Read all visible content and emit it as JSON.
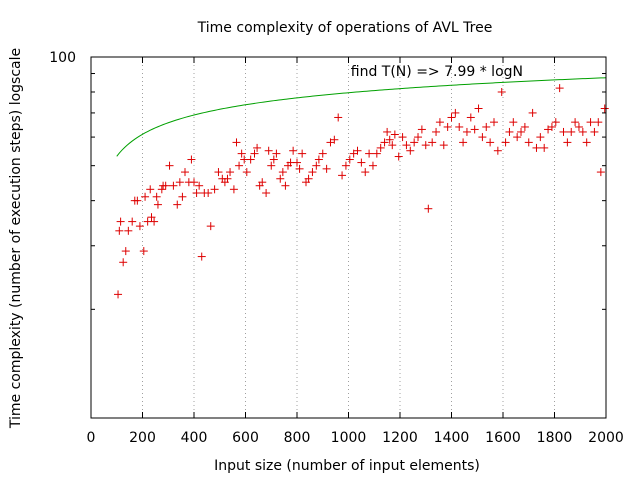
{
  "chart_data": {
    "type": "scatter",
    "title": "Time complexity of operations of AVL Tree",
    "xlabel": "Input size (number of input elements)",
    "ylabel": "Time complexity (number of execution steps) logscale",
    "xlim": [
      0,
      2000
    ],
    "ylim": [
      10,
      100
    ],
    "y_scale": "log",
    "x_ticks": [
      "0",
      "200",
      "400",
      "600",
      "800",
      "1000",
      "1200",
      "1400",
      "1600",
      "1800",
      "2000"
    ],
    "y_ticks": [
      "100"
    ],
    "x_grid": "dotted vertical",
    "annotation": "find T(N) => 7.99 * logN",
    "colors": {
      "points": "#dd0000",
      "fit": "#00a000",
      "grid": "#a0a0a0"
    },
    "fit_curve": {
      "coefficient": 7.99,
      "x_range": [
        100,
        2000
      ]
    },
    "points": [
      [
        105,
        22
      ],
      [
        110,
        33
      ],
      [
        115,
        35
      ],
      [
        125,
        27
      ],
      [
        135,
        29
      ],
      [
        145,
        33
      ],
      [
        160,
        35
      ],
      [
        170,
        40
      ],
      [
        180,
        40
      ],
      [
        190,
        34
      ],
      [
        205,
        29
      ],
      [
        210,
        41
      ],
      [
        220,
        35
      ],
      [
        230,
        43
      ],
      [
        235,
        36
      ],
      [
        245,
        35
      ],
      [
        255,
        41
      ],
      [
        260,
        39
      ],
      [
        275,
        43
      ],
      [
        280,
        44
      ],
      [
        290,
        44
      ],
      [
        305,
        50
      ],
      [
        320,
        44
      ],
      [
        335,
        39
      ],
      [
        345,
        45
      ],
      [
        355,
        41
      ],
      [
        365,
        48
      ],
      [
        380,
        45
      ],
      [
        390,
        52
      ],
      [
        400,
        45
      ],
      [
        410,
        42
      ],
      [
        420,
        44
      ],
      [
        430,
        28
      ],
      [
        440,
        42
      ],
      [
        455,
        42
      ],
      [
        465,
        34
      ],
      [
        480,
        43
      ],
      [
        495,
        48
      ],
      [
        510,
        46
      ],
      [
        520,
        45
      ],
      [
        530,
        46
      ],
      [
        540,
        48
      ],
      [
        555,
        43
      ],
      [
        565,
        58
      ],
      [
        575,
        50
      ],
      [
        585,
        54
      ],
      [
        595,
        52
      ],
      [
        605,
        48
      ],
      [
        620,
        52
      ],
      [
        635,
        54
      ],
      [
        645,
        56
      ],
      [
        655,
        44
      ],
      [
        665,
        45
      ],
      [
        680,
        42
      ],
      [
        690,
        55
      ],
      [
        700,
        50
      ],
      [
        710,
        52
      ],
      [
        720,
        54
      ],
      [
        735,
        46
      ],
      [
        745,
        48
      ],
      [
        755,
        44
      ],
      [
        765,
        50
      ],
      [
        775,
        51
      ],
      [
        785,
        55
      ],
      [
        800,
        51
      ],
      [
        810,
        49
      ],
      [
        820,
        54
      ],
      [
        835,
        45
      ],
      [
        845,
        46
      ],
      [
        860,
        48
      ],
      [
        875,
        50
      ],
      [
        885,
        52
      ],
      [
        900,
        54
      ],
      [
        915,
        49
      ],
      [
        930,
        58
      ],
      [
        945,
        59
      ],
      [
        960,
        68
      ],
      [
        975,
        47
      ],
      [
        990,
        50
      ],
      [
        1005,
        52
      ],
      [
        1020,
        54
      ],
      [
        1035,
        55
      ],
      [
        1050,
        51
      ],
      [
        1065,
        48
      ],
      [
        1080,
        54
      ],
      [
        1095,
        50
      ],
      [
        1110,
        54
      ],
      [
        1125,
        56
      ],
      [
        1140,
        58
      ],
      [
        1150,
        62
      ],
      [
        1160,
        59
      ],
      [
        1170,
        57
      ],
      [
        1180,
        61
      ],
      [
        1195,
        53
      ],
      [
        1210,
        60
      ],
      [
        1225,
        57
      ],
      [
        1240,
        55
      ],
      [
        1255,
        58
      ],
      [
        1270,
        60
      ],
      [
        1285,
        63
      ],
      [
        1300,
        57
      ],
      [
        1310,
        38
      ],
      [
        1325,
        58
      ],
      [
        1340,
        62
      ],
      [
        1355,
        66
      ],
      [
        1370,
        57
      ],
      [
        1385,
        64
      ],
      [
        1400,
        68
      ],
      [
        1415,
        70
      ],
      [
        1430,
        64
      ],
      [
        1445,
        58
      ],
      [
        1460,
        62
      ],
      [
        1475,
        68
      ],
      [
        1490,
        63
      ],
      [
        1505,
        72
      ],
      [
        1520,
        60
      ],
      [
        1535,
        64
      ],
      [
        1550,
        58
      ],
      [
        1565,
        66
      ],
      [
        1580,
        55
      ],
      [
        1595,
        80
      ],
      [
        1610,
        58
      ],
      [
        1625,
        62
      ],
      [
        1640,
        66
      ],
      [
        1655,
        60
      ],
      [
        1670,
        62
      ],
      [
        1685,
        64
      ],
      [
        1700,
        58
      ],
      [
        1715,
        70
      ],
      [
        1730,
        56
      ],
      [
        1745,
        60
      ],
      [
        1760,
        56
      ],
      [
        1775,
        63
      ],
      [
        1790,
        64
      ],
      [
        1805,
        66
      ],
      [
        1820,
        82
      ],
      [
        1835,
        62
      ],
      [
        1850,
        58
      ],
      [
        1865,
        62
      ],
      [
        1880,
        66
      ],
      [
        1895,
        64
      ],
      [
        1910,
        62
      ],
      [
        1925,
        58
      ],
      [
        1940,
        66
      ],
      [
        1955,
        62
      ],
      [
        1970,
        66
      ],
      [
        1980,
        48
      ],
      [
        1995,
        72
      ]
    ]
  }
}
